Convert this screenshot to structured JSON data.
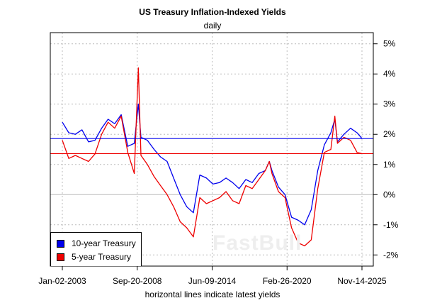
{
  "chart_data": {
    "type": "line",
    "title": "US Treasury Inflation-Indexed Yields",
    "subtitle": "daily",
    "xlabel": "horizontal lines indicate latest yields",
    "ylabel": "",
    "x_tick_labels": [
      "Jan-02-2003",
      "Sep-20-2008",
      "Jun-09-2014",
      "Feb-26-2020",
      "Nov-14-2025"
    ],
    "x_ticks": [
      "2003-01-02",
      "2008-09-20",
      "2014-06-09",
      "2020-02-26",
      "2025-11-14"
    ],
    "y_tick_labels": [
      "5%",
      "4%",
      "3%",
      "2%",
      "1%",
      "0%",
      "-1%",
      "-2%"
    ],
    "y_ticks": [
      5,
      4,
      3,
      2,
      1,
      0,
      -1,
      -2
    ],
    "ylim": [
      -2.37,
      5.37
    ],
    "y_axis_side": "right",
    "grid": true,
    "legend_position": "bottom-left",
    "x": [
      "2003-01-02",
      "2003-07-01",
      "2004-01-01",
      "2004-07-01",
      "2005-01-01",
      "2005-07-01",
      "2006-01-01",
      "2006-07-01",
      "2007-01-01",
      "2007-07-01",
      "2008-01-01",
      "2008-07-01",
      "2008-10-20",
      "2009-01-01",
      "2009-07-01",
      "2010-01-01",
      "2010-07-01",
      "2011-01-01",
      "2011-07-01",
      "2012-01-01",
      "2012-07-01",
      "2013-01-01",
      "2013-07-01",
      "2014-01-01",
      "2014-07-01",
      "2015-01-01",
      "2015-07-01",
      "2016-01-01",
      "2016-07-01",
      "2017-01-01",
      "2017-07-01",
      "2018-01-01",
      "2018-07-01",
      "2018-10-20",
      "2019-01-01",
      "2019-07-01",
      "2020-01-01",
      "2020-07-01",
      "2021-01-01",
      "2021-07-01",
      "2022-01-01",
      "2022-07-01",
      "2023-01-01",
      "2023-07-01",
      "2023-10-20",
      "2024-01-01",
      "2024-07-01",
      "2025-01-01",
      "2025-07-01",
      "2025-11-14"
    ],
    "series": [
      {
        "name": "10-year Treasury",
        "color": "#0000ee",
        "latest": 1.86,
        "values": [
          2.4,
          2.05,
          2.0,
          2.15,
          1.75,
          1.8,
          2.2,
          2.5,
          2.35,
          2.65,
          1.6,
          1.7,
          3.0,
          1.9,
          1.8,
          1.5,
          1.25,
          1.1,
          0.55,
          0.0,
          -0.4,
          -0.6,
          0.65,
          0.55,
          0.35,
          0.4,
          0.55,
          0.4,
          0.2,
          0.5,
          0.4,
          0.7,
          0.8,
          1.1,
          0.8,
          0.25,
          0.0,
          -0.75,
          -0.85,
          -1.0,
          -0.5,
          0.8,
          1.65,
          2.05,
          2.5,
          1.75,
          2.0,
          2.2,
          2.05,
          1.86
        ]
      },
      {
        "name": "5-year Treasury",
        "color": "#ee0000",
        "latest": 1.36,
        "values": [
          1.8,
          1.2,
          1.3,
          1.2,
          1.1,
          1.35,
          2.0,
          2.4,
          2.2,
          2.6,
          1.4,
          0.7,
          4.2,
          1.3,
          1.0,
          0.6,
          0.3,
          0.0,
          -0.4,
          -0.9,
          -1.1,
          -1.4,
          -0.1,
          -0.3,
          -0.2,
          -0.1,
          0.1,
          -0.2,
          -0.3,
          0.3,
          0.2,
          0.5,
          0.8,
          1.1,
          0.7,
          0.1,
          -0.1,
          -1.1,
          -1.6,
          -1.7,
          -1.5,
          0.2,
          1.4,
          1.5,
          2.6,
          1.7,
          1.9,
          1.8,
          1.4,
          1.36
        ]
      }
    ]
  },
  "watermark": "FastBull"
}
